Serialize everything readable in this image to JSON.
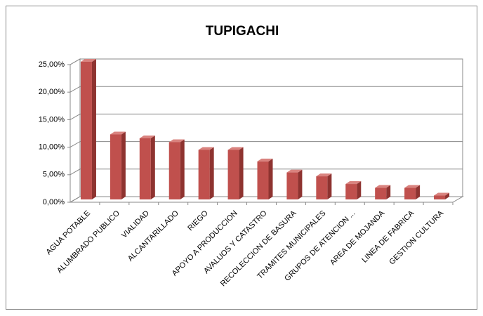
{
  "chart_data": {
    "type": "bar3d",
    "title": "TUPIGACHI",
    "categories": [
      "AGUA POTABLE",
      "ALUMBRADO PUBLICO",
      "VIALIDAD",
      "ALCANTARILLADO",
      "RIEGO",
      "APOYO A PRODUCCION",
      "AVALUOS Y CATASTRO",
      "RECOLECCION DE BASURA",
      "TRAMITES MUNICIPALES",
      "GRUPOS DE ATENCION ...",
      "AREA DE MOJANDA",
      "LINEA DE FABRICA",
      "GESTION CULTURA"
    ],
    "values": [
      25.0,
      11.8,
      11.1,
      10.4,
      9.0,
      9.0,
      6.9,
      4.9,
      4.2,
      2.8,
      2.1,
      2.1,
      0.7
    ],
    "color": "#c0504d",
    "ylim": [
      0,
      25
    ],
    "yticks": [
      {
        "value": 0,
        "label": "0,00%"
      },
      {
        "value": 5,
        "label": "5,00%"
      },
      {
        "value": 10,
        "label": "10,00%"
      },
      {
        "value": 15,
        "label": "15,00%"
      },
      {
        "value": 20,
        "label": "20,00%"
      },
      {
        "value": 25,
        "label": "25,00%"
      }
    ],
    "grid": true
  }
}
